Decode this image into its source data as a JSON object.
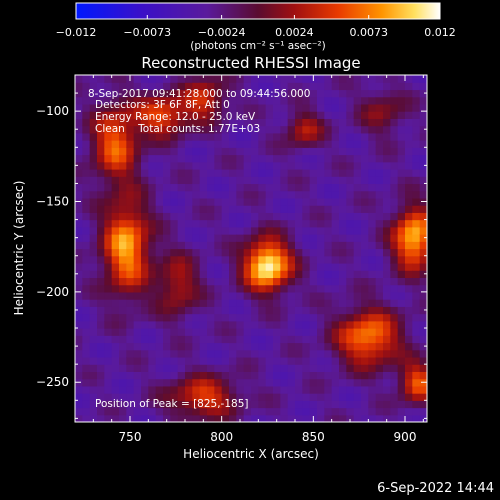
{
  "chart_data": {
    "type": "heatmap",
    "title": "Reconstructed RHESSI Image",
    "xlabel": "Heliocentric X (arcsec)",
    "ylabel": "Heliocentric Y (arcsec)",
    "xlim": [
      720,
      912
    ],
    "ylim": [
      -272,
      -80
    ],
    "x_ticks": [
      750,
      800,
      850,
      900
    ],
    "x_tick_labels": [
      "750",
      "800",
      "850",
      "900"
    ],
    "y_ticks": [
      -100,
      -150,
      -200,
      -250
    ],
    "y_tick_labels": [
      "−100",
      "−150",
      "−200",
      "−250"
    ],
    "colorbar": {
      "range": [
        -0.012,
        0.012
      ],
      "ticks": [
        -0.012,
        -0.0073,
        -0.0024,
        0.0024,
        0.0073,
        0.012
      ],
      "tick_labels": [
        "−0.012",
        "−0.0073",
        "−0.0024",
        "0.0024",
        "0.0073",
        "0.012"
      ],
      "unit_label": "(photons cm⁻² s⁻¹ asec⁻²)",
      "colormap": "rainbow-like (blue-purple-red-orange-yellow-white)"
    },
    "annotations": [
      "8-Sep-2017 09:41:28.000 to 09:44:56.000",
      "Detectors: 3F 6F 8F, Att 0",
      "Energy Range: 12.0 - 25.0 keV",
      "Clean    Total counts: 1.77E+03",
      "Position of Peak = [825,-185]"
    ],
    "peak": [
      825,
      -185
    ],
    "sources": [
      {
        "x": 825,
        "y": -185,
        "sx": 9,
        "sy": 10,
        "amp": 1.0
      },
      {
        "x": 742,
        "y": -117,
        "sx": 9,
        "sy": 15,
        "amp": 0.62
      },
      {
        "x": 768,
        "y": -102,
        "sx": 10,
        "sy": 8,
        "amp": 0.6
      },
      {
        "x": 791,
        "y": -93,
        "sx": 8,
        "sy": 8,
        "amp": 0.5
      },
      {
        "x": 748,
        "y": -175,
        "sx": 9,
        "sy": 18,
        "amp": 0.78
      },
      {
        "x": 776,
        "y": -196,
        "sx": 8,
        "sy": 12,
        "amp": 0.42
      },
      {
        "x": 880,
        "y": -225,
        "sx": 12,
        "sy": 11,
        "amp": 0.72
      },
      {
        "x": 905,
        "y": -170,
        "sx": 8,
        "sy": 12,
        "amp": 0.85
      },
      {
        "x": 907,
        "y": -250,
        "sx": 7,
        "sy": 8,
        "amp": 0.6
      },
      {
        "x": 790,
        "y": -258,
        "sx": 13,
        "sy": 8,
        "amp": 0.55
      },
      {
        "x": 845,
        "y": -110,
        "sx": 7,
        "sy": 7,
        "amp": 0.42
      },
      {
        "x": 888,
        "y": -100,
        "sx": 9,
        "sy": 9,
        "amp": 0.3
      }
    ]
  },
  "footer": {
    "date": "6-Sep-2022 14:44"
  }
}
